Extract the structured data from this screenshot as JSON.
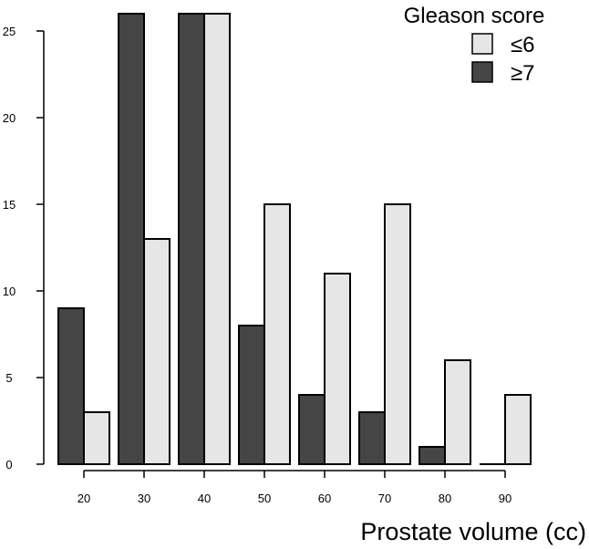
{
  "chart_data": {
    "type": "bar",
    "categories": [
      "20",
      "30",
      "40",
      "50",
      "60",
      "70",
      "80",
      "90"
    ],
    "series": [
      {
        "name": "≥7",
        "color": "#454545",
        "values": [
          9,
          26,
          26,
          8,
          4,
          3,
          1,
          0
        ]
      },
      {
        "name": "≤6",
        "color": "#e6e6e6",
        "values": [
          3,
          13,
          26,
          15,
          11,
          15,
          6,
          4
        ]
      }
    ],
    "legend_order": [
      1,
      0
    ],
    "title": "",
    "xlabel": "Prostate volume (cc)",
    "ylabel": "",
    "ylim": [
      0,
      26
    ],
    "yticks": [
      0,
      5,
      10,
      15,
      20,
      25
    ],
    "legend": {
      "title": "Gleason score",
      "placement": "top-right"
    },
    "grid": false
  }
}
